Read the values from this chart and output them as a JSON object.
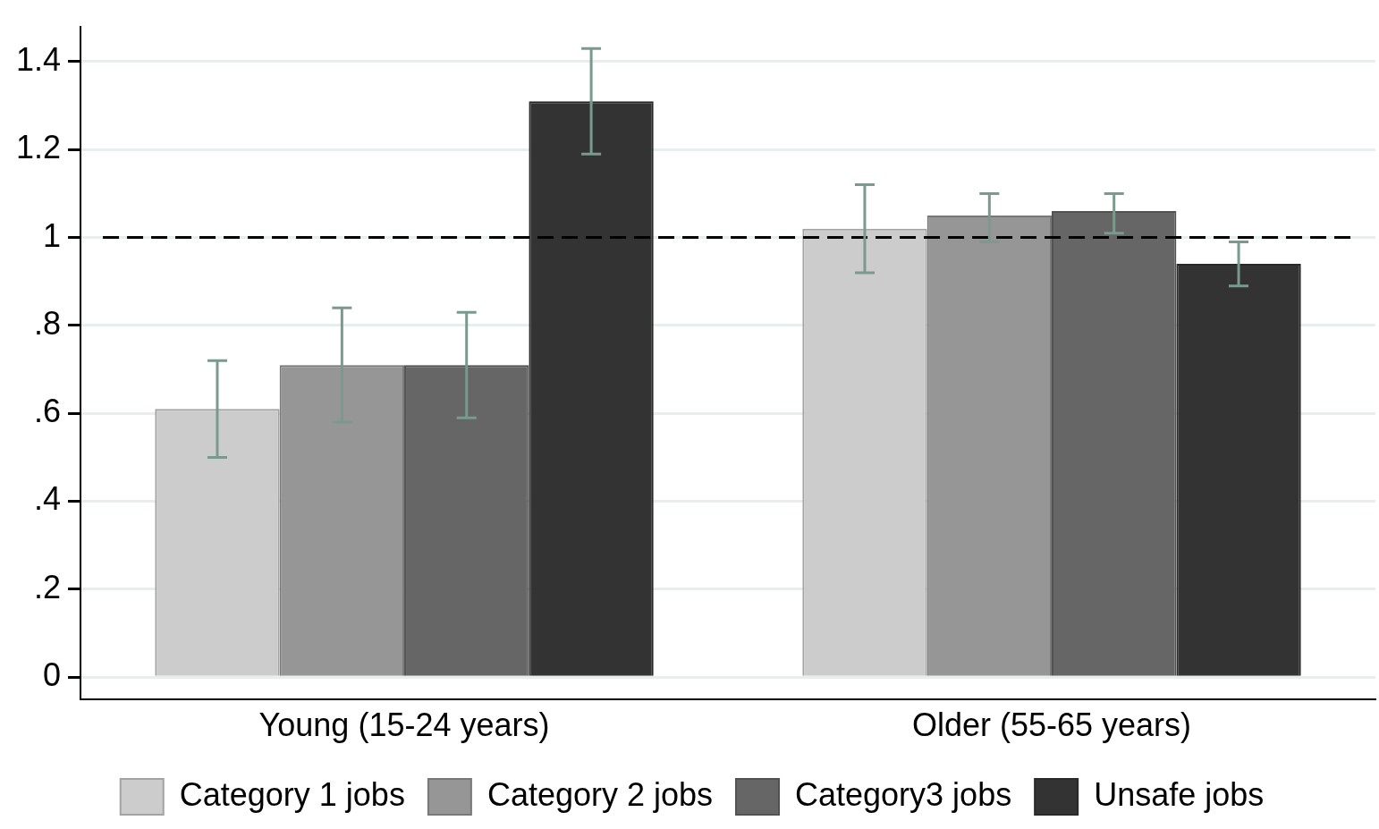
{
  "chart_data": {
    "type": "bar",
    "categories": [
      "Young (15-24 years)",
      "Older (55-65 years)"
    ],
    "series": [
      {
        "name": "Category 1 jobs",
        "color": "#cccccc",
        "values": [
          0.61,
          1.02
        ],
        "errors": [
          [
            0.5,
            0.72
          ],
          [
            0.92,
            1.12
          ]
        ]
      },
      {
        "name": "Category 2 jobs",
        "color": "#969696",
        "values": [
          0.71,
          1.05
        ],
        "errors": [
          [
            0.58,
            0.84
          ],
          [
            0.99,
            1.1
          ]
        ]
      },
      {
        "name": "Category3 jobs",
        "color": "#666666",
        "values": [
          0.71,
          1.06
        ],
        "errors": [
          [
            0.59,
            0.83
          ],
          [
            1.01,
            1.1
          ]
        ]
      },
      {
        "name": "Unsafe jobs",
        "color": "#333333",
        "values": [
          1.31,
          0.94
        ],
        "errors": [
          [
            1.19,
            1.43
          ],
          [
            0.89,
            0.99
          ]
        ]
      }
    ],
    "ylim": [
      -0.05,
      1.48
    ],
    "yticks": [
      0,
      {
        "value": 0.2,
        "label": ".2"
      },
      {
        "value": 0.4,
        "label": ".4"
      },
      {
        "value": 0.6,
        "label": ".6"
      },
      {
        "value": 0.8,
        "label": ".8"
      },
      1,
      1.2,
      1.4
    ],
    "ref_lines": [
      {
        "axis": "y",
        "value": 1,
        "line_style": "dashed",
        "color": "#000000"
      }
    ],
    "grid": "y",
    "legend": "bottom"
  }
}
